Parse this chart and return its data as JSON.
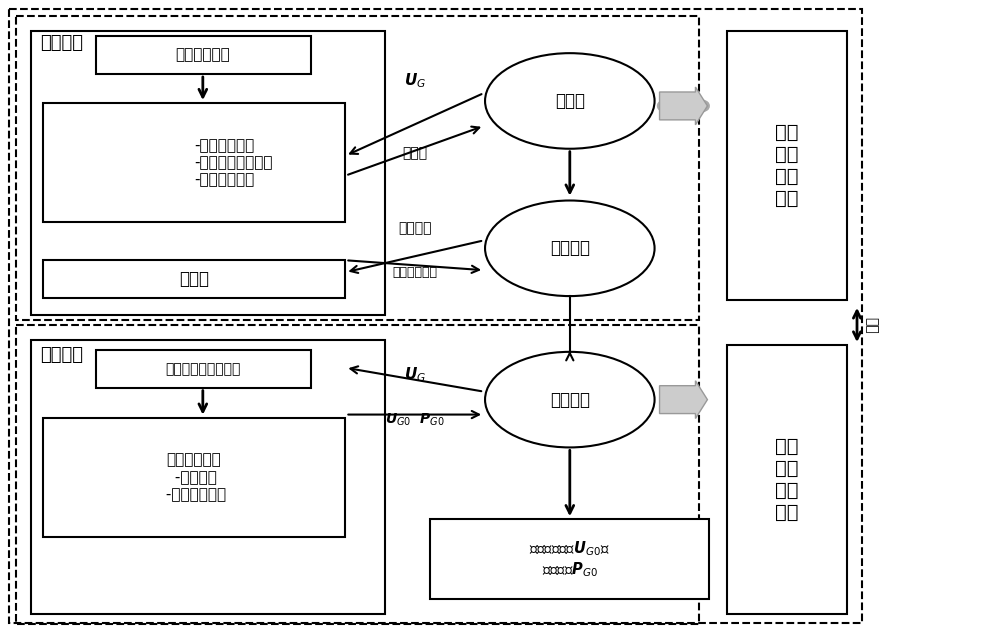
{
  "fig_width": 10.0,
  "fig_height": 6.32,
  "bg_color": "#ffffff",
  "font_size_small": 9,
  "font_size_med": 11,
  "font_size_large": 13,
  "font_size_xlarge": 15,
  "texts": {
    "coarse_model": "粗糙模型",
    "discrete_var": "离散变量识别",
    "constraints": "-功率平衡约束\n-最小启停时间约束\n-机组爬坡约束",
    "blind_select": "盲选法",
    "solution_space": "解空间",
    "rep_set": "表征集合",
    "fine_model": "精确模型",
    "invalid_constraint": "非有效安全约束识别",
    "cost_min": "机组费用最小\n -安全约束\n -机组出力约束",
    "selected_set": "选定集合",
    "optimal_result": "最优启停方案$\\boldsymbol{U}_{G0}$、\n机组出力$\\boldsymbol{P}_{G0}$",
    "right_top": "机组\n启停\n状态\n变量",
    "right_bot": "机组\n出力\n状态\n变量",
    "decouple": "解耦",
    "ug_label": "$\\boldsymbol{U}_G$",
    "prescreening": "预筛选",
    "related_param": "相关参数",
    "rep_size": "表征集合大小",
    "ug_bot": "$\\boldsymbol{U}_G$",
    "ug0_pg0": "$\\boldsymbol{U}_{G0}$  $\\boldsymbol{P}_{G0}$"
  }
}
